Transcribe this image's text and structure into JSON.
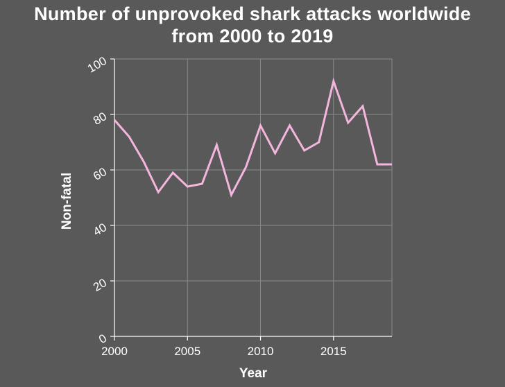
{
  "chart_data": {
    "type": "line",
    "title_lines": [
      "Number of unprovoked shark attacks worldwide",
      "from 2000 to 2019"
    ],
    "xlabel": "Year",
    "ylabel": "Non-fatal",
    "xlim": [
      2000,
      2019
    ],
    "ylim": [
      0,
      100
    ],
    "x_ticks": [
      2000,
      2005,
      2010,
      2015
    ],
    "y_ticks": [
      0,
      20,
      40,
      60,
      80,
      100
    ],
    "grid": true,
    "line_color": "#f4b6dd",
    "background_color": "#595959",
    "x": [
      2000,
      2001,
      2002,
      2003,
      2004,
      2005,
      2006,
      2007,
      2008,
      2009,
      2010,
      2011,
      2012,
      2013,
      2014,
      2015,
      2016,
      2017,
      2018,
      2019
    ],
    "values": [
      78,
      72,
      63,
      52,
      59,
      54,
      55,
      69,
      51,
      61,
      76,
      66,
      76,
      67,
      70,
      92,
      77,
      83,
      62,
      62
    ]
  }
}
